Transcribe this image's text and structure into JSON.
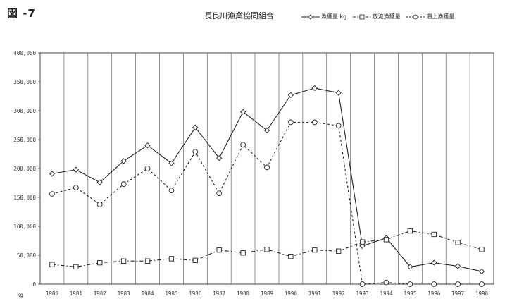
{
  "figure_label": "図 -7",
  "chart_data": {
    "type": "line",
    "title": "長良川漁業協同組合",
    "x": [
      1980,
      1981,
      1982,
      1983,
      1984,
      1985,
      1986,
      1987,
      1988,
      1989,
      1990,
      1991,
      1992,
      1993,
      1994,
      1995,
      1996,
      1997,
      1998
    ],
    "x_tick_labels": [
      "1980",
      "1981",
      "1982",
      "1983",
      "1984",
      "1985",
      "1986",
      "1987",
      "1988",
      "1989",
      "1990",
      "1991",
      "1992",
      "1993",
      "1994",
      "1995",
      "1996",
      "1997",
      "1998"
    ],
    "ylim": [
      0,
      400000
    ],
    "y_tick_labels": [
      "0",
      "50,000",
      "100,000",
      "150,000",
      "200,000",
      "250,000",
      "300,000",
      "350,000",
      "400,000"
    ],
    "y_unit": "kg",
    "grid": "vertical",
    "legend_position": "top-right",
    "series": [
      {
        "name": "漁獲量 kg",
        "style": "solid",
        "marker": "diamond",
        "color": "#222222",
        "values": [
          191000,
          198000,
          176000,
          213000,
          240000,
          209000,
          271000,
          218000,
          298000,
          266000,
          327000,
          339000,
          331000,
          66000,
          80000,
          30000,
          37000,
          31000,
          22000
        ]
      },
      {
        "name": "放流漁獲量",
        "style": "dashdot",
        "marker": "square",
        "color": "#222222",
        "values": [
          34000,
          30000,
          37000,
          40000,
          40000,
          44000,
          41000,
          59000,
          54000,
          60000,
          48000,
          59000,
          57000,
          73000,
          77000,
          92000,
          86000,
          72000,
          60000
        ]
      },
      {
        "name": "遡上漁獲量",
        "style": "dashed",
        "marker": "circle",
        "color": "#222222",
        "values": [
          156000,
          167000,
          138000,
          173000,
          200000,
          162000,
          229000,
          157000,
          241000,
          202000,
          280000,
          280000,
          274000,
          0,
          3000,
          0,
          0,
          0,
          0
        ]
      }
    ]
  }
}
